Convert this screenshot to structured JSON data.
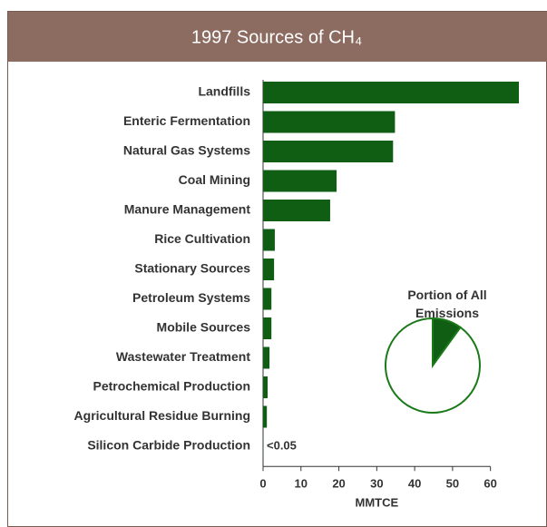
{
  "chart_data": [
    {
      "type": "hbar",
      "title": "1997 Sources of CH₄",
      "categories": [
        "Landfills",
        "Enteric Fermentation",
        "Natural Gas Systems",
        "Coal Mining",
        "Manure Management",
        "Rice Cultivation",
        "Stationary Sources",
        "Petroleum Systems",
        "Mobile Sources",
        "Wastewater Treatment",
        "Petrochemical Production",
        "Agricultural Residue Burning",
        "Silicon Carbide Production"
      ],
      "values": [
        67.5,
        34.8,
        34.3,
        19.4,
        17.7,
        3.1,
        2.9,
        2.2,
        2.2,
        1.7,
        1.2,
        1.0,
        0.05
      ],
      "value_labels": [
        null,
        null,
        null,
        null,
        null,
        null,
        null,
        null,
        null,
        null,
        null,
        null,
        "<0.05"
      ],
      "color": "#0f5e14",
      "xlim": [
        0,
        67.5
      ],
      "xticks": [
        0,
        10,
        20,
        30,
        40,
        50,
        60
      ],
      "xlabel": "MMTCE"
    },
    {
      "type": "pie",
      "title": "Portion of All Emissions",
      "values": [
        10,
        90
      ],
      "colors": [
        "#0f5e14",
        "#ffffff"
      ],
      "edge": "#1a7a1a"
    }
  ]
}
